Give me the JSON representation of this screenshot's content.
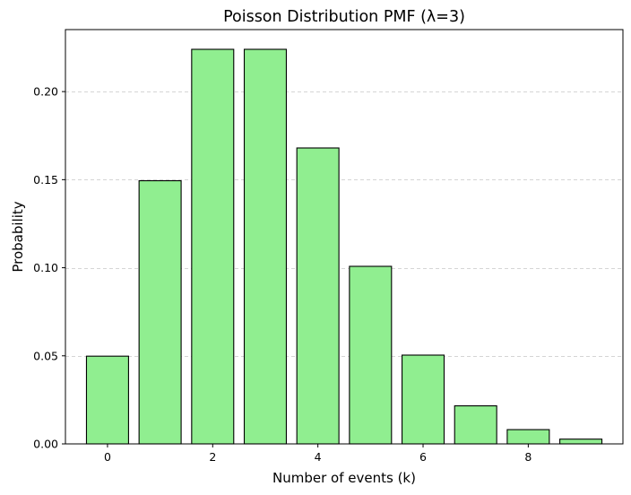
{
  "chart_data": {
    "type": "bar",
    "title": "Poisson Distribution PMF (λ=3)",
    "xlabel": "Number of events (k)",
    "ylabel": "Probability",
    "categories": [
      0,
      1,
      2,
      3,
      4,
      5,
      6,
      7,
      8,
      9
    ],
    "values": [
      0.0498,
      0.1494,
      0.224,
      0.224,
      0.168,
      0.1008,
      0.0504,
      0.0216,
      0.0081,
      0.0027
    ],
    "xlim": [
      -0.8,
      9.8
    ],
    "ylim": [
      0,
      0.2352
    ],
    "x_ticks": [
      0,
      2,
      4,
      6,
      8
    ],
    "x_tick_labels": [
      "0",
      "2",
      "4",
      "6",
      "8"
    ],
    "y_ticks": [
      0,
      0.05,
      0.1,
      0.15,
      0.2
    ],
    "y_tick_labels": [
      "0.00",
      "0.05",
      "0.10",
      "0.15",
      "0.20"
    ],
    "grid": "y-dashed",
    "colors": {
      "bar_fill": "#90ee90",
      "bar_edge": "#000000",
      "grid": "#c8c8c8"
    }
  }
}
